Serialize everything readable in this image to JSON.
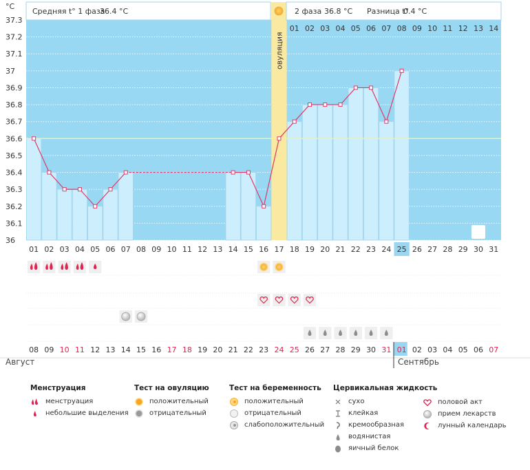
{
  "header": {
    "phase1_label": "Средняя t° 1 фаза",
    "phase1_value": "36.4 °C",
    "phase2_label": "2 фаза",
    "phase2_value": "36.8 °C",
    "diff_label": "Разница t°",
    "diff_value": "0.4 °C",
    "unit": "°C",
    "ovulation_label": "овуляция"
  },
  "chart_data": {
    "type": "line",
    "ylim": [
      36,
      37.3
    ],
    "y_ticks": [
      "37.3",
      "37.2",
      "37.1",
      "37",
      "36.9",
      "36.8",
      "36.7",
      "36.6",
      "36.5",
      "36.4",
      "36.3",
      "36.2",
      "36.1",
      "36"
    ],
    "coverline": 36.6,
    "cycle_days": [
      "01",
      "02",
      "03",
      "04",
      "05",
      "06",
      "07",
      "08",
      "09",
      "10",
      "11",
      "12",
      "13",
      "14",
      "15",
      "16",
      "17",
      "18",
      "19",
      "20",
      "21",
      "22",
      "23",
      "24",
      "25",
      "26",
      "27",
      "28",
      "29",
      "30",
      "31"
    ],
    "cycle_current_day": "25",
    "phase2_days": [
      "01",
      "02",
      "03",
      "04",
      "05",
      "06",
      "07",
      "08",
      "09",
      "10",
      "11",
      "12",
      "13",
      "14"
    ],
    "temperatures": [
      36.6,
      36.4,
      36.3,
      36.3,
      36.2,
      36.3,
      36.4,
      null,
      null,
      null,
      null,
      null,
      null,
      36.4,
      36.4,
      36.2,
      36.6,
      36.7,
      36.8,
      36.8,
      36.8,
      36.9,
      36.9,
      36.7,
      37.0,
      null,
      null,
      null,
      null,
      null,
      null
    ],
    "ovulation_day": 17,
    "dates": [
      "08",
      "09",
      "10",
      "11",
      "12",
      "13",
      "14",
      "15",
      "16",
      "17",
      "18",
      "19",
      "20",
      "21",
      "22",
      "23",
      "24",
      "25",
      "26",
      "27",
      "28",
      "29",
      "30",
      "31",
      "01",
      "02",
      "03",
      "04",
      "05",
      "06",
      "07"
    ],
    "weekend_dates": [
      2,
      3,
      9,
      10,
      16,
      17,
      23,
      24,
      30
    ],
    "today_date_index": 24,
    "months": [
      "Август",
      "Сентябрь"
    ],
    "markers": {
      "menstruation": [
        1,
        2,
        3,
        4
      ],
      "spotting": [
        5
      ],
      "ovulation_test_positive": [
        16,
        17
      ],
      "intercourse": [
        16,
        17,
        18,
        19
      ],
      "medication": [
        7,
        8
      ],
      "cervical_watery": [
        19,
        20,
        21,
        22,
        23,
        24
      ],
      "lunar": [
        30
      ]
    }
  },
  "legend": {
    "menstruation": {
      "title": "Менструация",
      "items": [
        "менструация",
        "небольшие выделения"
      ]
    },
    "ovulation_test": {
      "title": "Тест на овуляцию",
      "items": [
        "положительный",
        "отрицательный"
      ]
    },
    "pregnancy_test": {
      "title": "Тест на беременность",
      "items": [
        "положительный",
        "отрицательный",
        "слабоположительный"
      ]
    },
    "cervical": {
      "title": "Цервикальная жидкость",
      "items": [
        "сухо",
        "клейкая",
        "кремообразная",
        "водянистая",
        "яичный белок"
      ]
    },
    "other": {
      "items": [
        "половой акт",
        "прием лекарств",
        "лунный календарь"
      ]
    }
  },
  "colors": {
    "bg_blue": "#99d8f2",
    "bar": "#cdeefc",
    "bar_border": "#a3d6ee",
    "line": "#e0386a",
    "ovulation": "#fae9a0",
    "coverline": "#f4f0a2",
    "accent_red": "#e2234f",
    "today": "#9ad6f0"
  }
}
